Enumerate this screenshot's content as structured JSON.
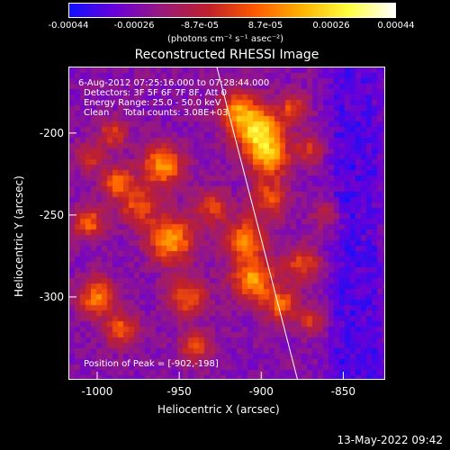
{
  "colorbar": {
    "ticks": [
      "-0.00044",
      "-0.00026",
      "-8.7e-05",
      "8.7e-05",
      "0.00026",
      "0.00044"
    ],
    "unit_label": "(photons cm⁻² s⁻¹ asec⁻²)",
    "range": [
      -0.00044,
      0.00044
    ],
    "colormap": [
      "#1010ff",
      "#6a00d8",
      "#9a1a7a",
      "#c0202a",
      "#ff5a00",
      "#ffb300",
      "#ffff40",
      "#ffffff"
    ]
  },
  "chart_data": {
    "type": "heatmap",
    "title": "Reconstructed RHESSI Image",
    "xlabel": "Heliocentric X (arcsec)",
    "ylabel": "Heliocentric Y (arcsec)",
    "xlim": [
      -1017,
      -825
    ],
    "ylim": [
      -350,
      -160
    ],
    "x_ticks": [
      "-1000",
      "-950",
      "-900",
      "-850"
    ],
    "x_tick_values": [
      -1000,
      -950,
      -900,
      -850
    ],
    "y_ticks": [
      "-200",
      "-250",
      "-300"
    ],
    "y_tick_values": [
      -200,
      -250,
      -300
    ],
    "limb_line": [
      [
        -927,
        -160
      ],
      [
        -878,
        -350
      ]
    ],
    "peak_position": [
      -902,
      -198
    ],
    "annotations": [
      "6-Aug-2012 07:25:16.000 to 07:28:44.000",
      "Detectors: 3F 5F 6F 7F 8F, Att 0",
      "Energy Range: 25.0 - 50.0 keV",
      "Clean     Total counts: 3.08E+03"
    ],
    "peak_label": "Position of Peak = [-902,-198]"
  },
  "footer_timestamp": "13-May-2022 09:42"
}
